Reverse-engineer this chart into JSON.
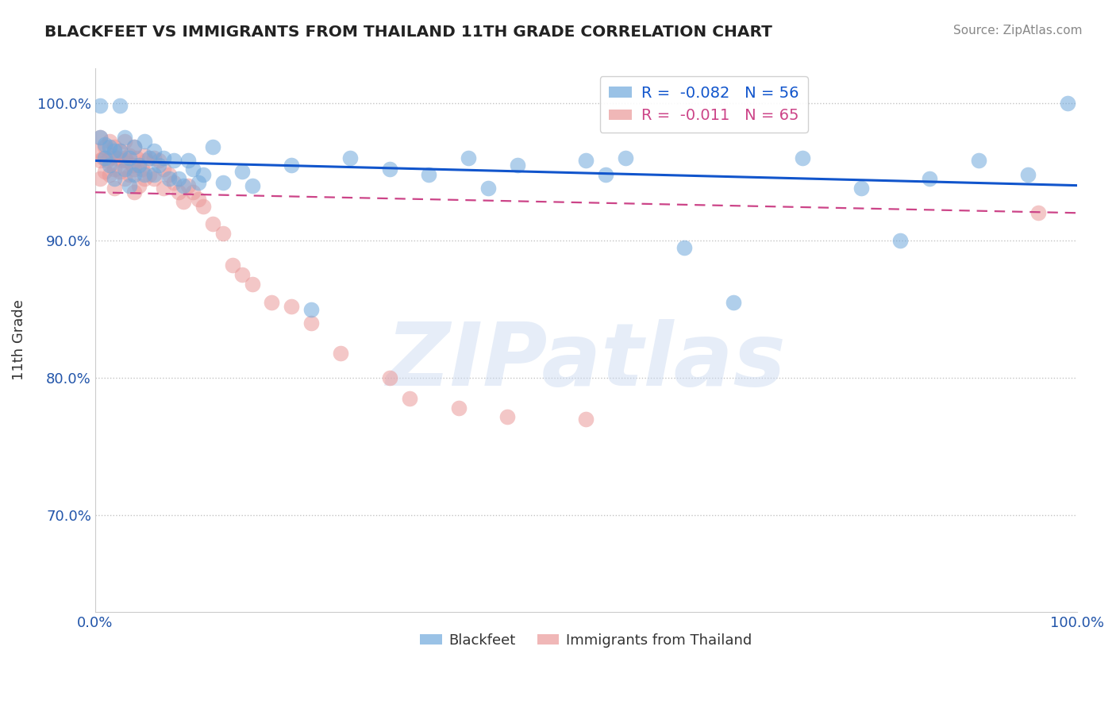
{
  "title": "BLACKFEET VS IMMIGRANTS FROM THAILAND 11TH GRADE CORRELATION CHART",
  "source": "Source: ZipAtlas.com",
  "ylabel": "11th Grade",
  "xlim": [
    0.0,
    1.0
  ],
  "ylim": [
    0.63,
    1.025
  ],
  "yticks": [
    0.7,
    0.8,
    0.9,
    1.0
  ],
  "ytick_labels": [
    "70.0%",
    "80.0%",
    "90.0%",
    "100.0%"
  ],
  "xticks": [
    0.0,
    0.2,
    0.4,
    0.6,
    0.8,
    1.0
  ],
  "xtick_labels": [
    "0.0%",
    "",
    "",
    "",
    "",
    "100.0%"
  ],
  "blue_R": -0.082,
  "blue_N": 56,
  "pink_R": -0.011,
  "pink_N": 65,
  "blue_color": "#6fa8dc",
  "pink_color": "#ea9999",
  "blue_line_color": "#1155cc",
  "pink_line_color": "#cc4488",
  "blue_line_start_y": 0.958,
  "blue_line_end_y": 0.94,
  "pink_line_start_y": 0.935,
  "pink_line_end_y": 0.92,
  "watermark": "ZIPatlas",
  "blue_points_x": [
    0.005,
    0.005,
    0.01,
    0.01,
    0.015,
    0.015,
    0.02,
    0.02,
    0.025,
    0.025,
    0.03,
    0.03,
    0.035,
    0.035,
    0.04,
    0.04,
    0.045,
    0.05,
    0.05,
    0.055,
    0.06,
    0.06,
    0.065,
    0.07,
    0.075,
    0.08,
    0.085,
    0.09,
    0.095,
    0.1,
    0.105,
    0.11,
    0.12,
    0.13,
    0.15,
    0.16,
    0.2,
    0.22,
    0.26,
    0.3,
    0.34,
    0.38,
    0.4,
    0.43,
    0.5,
    0.52,
    0.54,
    0.6,
    0.65,
    0.72,
    0.78,
    0.82,
    0.85,
    0.9,
    0.95,
    0.99
  ],
  "blue_points_y": [
    0.975,
    0.998,
    0.97,
    0.96,
    0.968,
    0.955,
    0.965,
    0.945,
    0.998,
    0.965,
    0.975,
    0.952,
    0.96,
    0.94,
    0.968,
    0.948,
    0.955,
    0.972,
    0.948,
    0.96,
    0.965,
    0.948,
    0.955,
    0.96,
    0.945,
    0.958,
    0.945,
    0.94,
    0.958,
    0.952,
    0.942,
    0.948,
    0.968,
    0.942,
    0.95,
    0.94,
    0.955,
    0.85,
    0.96,
    0.952,
    0.948,
    0.96,
    0.938,
    0.955,
    0.958,
    0.948,
    0.96,
    0.895,
    0.855,
    0.96,
    0.938,
    0.9,
    0.945,
    0.958,
    0.948,
    1.0
  ],
  "pink_points_x": [
    0.003,
    0.005,
    0.005,
    0.005,
    0.008,
    0.01,
    0.01,
    0.012,
    0.015,
    0.015,
    0.015,
    0.018,
    0.02,
    0.02,
    0.02,
    0.022,
    0.025,
    0.025,
    0.028,
    0.03,
    0.03,
    0.03,
    0.032,
    0.035,
    0.035,
    0.038,
    0.04,
    0.04,
    0.04,
    0.042,
    0.045,
    0.045,
    0.048,
    0.05,
    0.05,
    0.052,
    0.055,
    0.06,
    0.06,
    0.065,
    0.07,
    0.07,
    0.075,
    0.08,
    0.085,
    0.09,
    0.095,
    0.1,
    0.105,
    0.11,
    0.12,
    0.13,
    0.14,
    0.15,
    0.16,
    0.18,
    0.2,
    0.22,
    0.25,
    0.3,
    0.32,
    0.37,
    0.42,
    0.5,
    0.96
  ],
  "pink_points_y": [
    0.965,
    0.975,
    0.958,
    0.945,
    0.96,
    0.968,
    0.95,
    0.958,
    0.972,
    0.96,
    0.948,
    0.962,
    0.968,
    0.952,
    0.938,
    0.96,
    0.965,
    0.95,
    0.958,
    0.972,
    0.96,
    0.945,
    0.958,
    0.962,
    0.948,
    0.955,
    0.968,
    0.952,
    0.935,
    0.96,
    0.955,
    0.94,
    0.952,
    0.962,
    0.945,
    0.958,
    0.948,
    0.96,
    0.945,
    0.958,
    0.952,
    0.938,
    0.948,
    0.942,
    0.935,
    0.928,
    0.94,
    0.935,
    0.93,
    0.925,
    0.912,
    0.905,
    0.882,
    0.875,
    0.868,
    0.855,
    0.852,
    0.84,
    0.818,
    0.8,
    0.785,
    0.778,
    0.772,
    0.77,
    0.92
  ]
}
